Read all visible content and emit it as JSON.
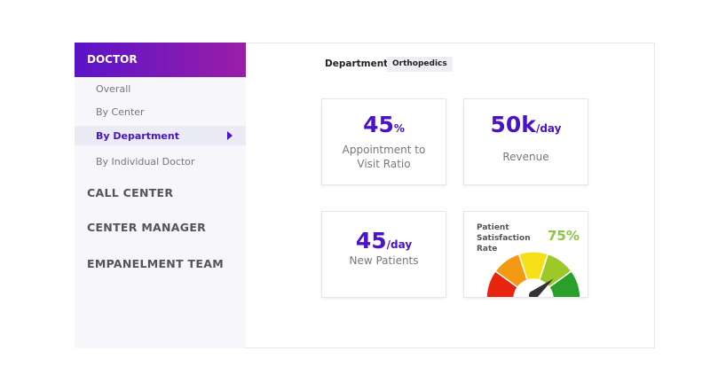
{
  "sidebar": {
    "header": "DOCTOR",
    "items": [
      "Overall",
      "By Center",
      "By Department",
      "By Individual Doctor"
    ],
    "sections": [
      "CALL CENTER",
      "CENTER MANAGER",
      "EMPANELMENT TEAM"
    ]
  },
  "filter": {
    "label": "Department",
    "value": "Orthopedics"
  },
  "cards": [
    {
      "value": "45",
      "unit": "%",
      "label": "Appointment to Visit Ratio"
    },
    {
      "value": "50k",
      "unit": "/day",
      "label": "Revenue"
    },
    {
      "value": "45",
      "unit": "/day",
      "label": "New Patients"
    }
  ],
  "gauge": {
    "label": "Patient Satisfaction Rate",
    "value": 75,
    "value_label": "75%",
    "range": [
      0,
      100
    ]
  }
}
